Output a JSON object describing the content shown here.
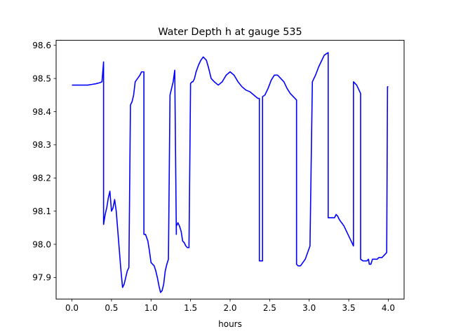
{
  "chart_data": {
    "type": "line",
    "title": "Water Depth h at gauge 535",
    "xlabel": "hours",
    "ylabel": "",
    "xlim": [
      -0.2,
      4.2
    ],
    "ylim": [
      97.835,
      98.615
    ],
    "xticks": [
      0.0,
      0.5,
      1.0,
      1.5,
      2.0,
      2.5,
      3.0,
      3.5,
      4.0
    ],
    "xtick_labels": [
      "0.0",
      "0.5",
      "1.0",
      "1.5",
      "2.0",
      "2.5",
      "3.0",
      "3.5",
      "4.0"
    ],
    "yticks": [
      97.9,
      98.0,
      98.1,
      98.2,
      98.3,
      98.4,
      98.5,
      98.6
    ],
    "ytick_labels": [
      "97.9",
      "98.0",
      "98.1",
      "98.2",
      "98.3",
      "98.4",
      "98.5",
      "98.6"
    ],
    "grid": false,
    "legend": "none",
    "series": [
      {
        "color": "#0000ff",
        "x": [
          0.0,
          0.1,
          0.2,
          0.25,
          0.3,
          0.35,
          0.38,
          0.4,
          0.4,
          0.42,
          0.44,
          0.46,
          0.48,
          0.5,
          0.52,
          0.54,
          0.56,
          0.58,
          0.6,
          0.62,
          0.64,
          0.66,
          0.68,
          0.7,
          0.72,
          0.74,
          0.76,
          0.76,
          0.78,
          0.8,
          0.83,
          0.86,
          0.88,
          0.91,
          0.91,
          0.93,
          0.96,
          0.98,
          1.0,
          1.02,
          1.04,
          1.06,
          1.08,
          1.1,
          1.12,
          1.14,
          1.16,
          1.18,
          1.2,
          1.22,
          1.24,
          1.26,
          1.26,
          1.28,
          1.3,
          1.32,
          1.32,
          1.34,
          1.36,
          1.38,
          1.4,
          1.42,
          1.44,
          1.46,
          1.48,
          1.5,
          1.52,
          1.53,
          1.53,
          1.55,
          1.57,
          1.6,
          1.63,
          1.66,
          1.7,
          1.73,
          1.76,
          1.8,
          1.85,
          1.9,
          1.95,
          2.0,
          2.05,
          2.1,
          2.15,
          2.2,
          2.25,
          2.3,
          2.35,
          2.37,
          2.37,
          2.41,
          2.41,
          2.44,
          2.48,
          2.52,
          2.56,
          2.6,
          2.64,
          2.68,
          2.72,
          2.76,
          2.8,
          2.84,
          2.84,
          2.86,
          2.89,
          2.92,
          2.95,
          2.98,
          3.01,
          3.04,
          3.04,
          3.08,
          3.12,
          3.16,
          3.19,
          3.22,
          3.24,
          3.24,
          3.27,
          3.3,
          3.32,
          3.34,
          3.36,
          3.38,
          3.4,
          3.42,
          3.44,
          3.46,
          3.48,
          3.5,
          3.52,
          3.54,
          3.56,
          3.56,
          3.6,
          3.63,
          3.65,
          3.65,
          3.68,
          3.71,
          3.73,
          3.75,
          3.76,
          3.78,
          3.8,
          3.82,
          3.84,
          3.86,
          3.88,
          3.9,
          3.92,
          3.94,
          3.96,
          3.98,
          3.99,
          3.99,
          4.0
        ],
        "y": [
          98.48,
          98.48,
          98.48,
          98.482,
          98.484,
          98.487,
          98.49,
          98.55,
          98.06,
          98.09,
          98.11,
          98.14,
          98.16,
          98.1,
          98.11,
          98.135,
          98.1,
          98.04,
          97.98,
          97.92,
          97.87,
          97.88,
          97.9,
          97.92,
          97.93,
          98.42,
          98.43,
          98.43,
          98.45,
          98.49,
          98.5,
          98.51,
          98.52,
          98.52,
          98.03,
          98.03,
          98.01,
          97.98,
          97.945,
          97.94,
          97.935,
          97.92,
          97.9,
          97.875,
          97.855,
          97.86,
          97.88,
          97.92,
          97.94,
          97.955,
          98.45,
          98.47,
          98.47,
          98.49,
          98.525,
          98.03,
          98.055,
          98.065,
          98.055,
          98.04,
          98.01,
          98.005,
          97.995,
          97.99,
          97.99,
          98.485,
          98.49,
          98.49,
          98.49,
          98.5,
          98.52,
          98.54,
          98.555,
          98.565,
          98.555,
          98.53,
          98.5,
          98.49,
          98.48,
          98.49,
          98.51,
          98.52,
          98.51,
          98.49,
          98.475,
          98.465,
          98.46,
          98.45,
          98.44,
          98.44,
          97.95,
          97.95,
          98.445,
          98.45,
          98.47,
          98.495,
          98.51,
          98.51,
          98.5,
          98.49,
          98.47,
          98.455,
          98.445,
          98.435,
          97.94,
          97.935,
          97.935,
          97.945,
          97.955,
          97.975,
          97.995,
          98.49,
          98.49,
          98.51,
          98.535,
          98.555,
          98.57,
          98.575,
          98.578,
          98.08,
          98.08,
          98.08,
          98.08,
          98.09,
          98.085,
          98.075,
          98.068,
          98.062,
          98.055,
          98.045,
          98.035,
          98.025,
          98.015,
          98.005,
          97.995,
          98.49,
          98.48,
          98.465,
          98.455,
          97.955,
          97.95,
          97.95,
          97.95,
          97.955,
          97.94,
          97.94,
          97.955,
          97.955,
          97.955,
          97.955,
          97.96,
          97.96,
          97.96,
          97.965,
          97.97,
          97.975,
          98.47,
          98.475,
          98.475
        ]
      }
    ]
  }
}
